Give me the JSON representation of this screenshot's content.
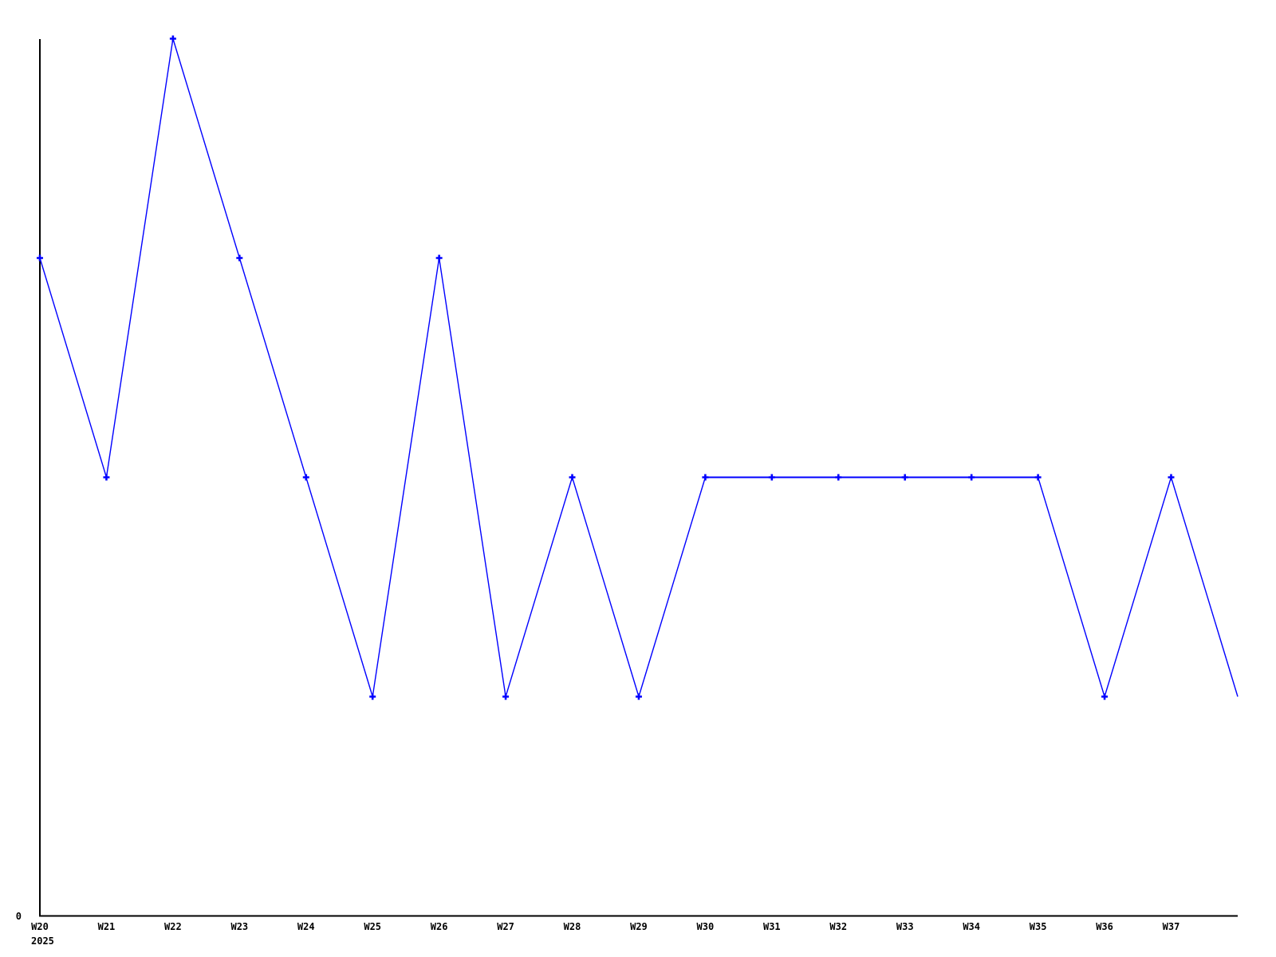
{
  "chart_data": {
    "type": "line",
    "title": "",
    "xlabel": "",
    "ylabel": "",
    "categories": [
      "W20",
      "W21",
      "W22",
      "W23",
      "W24",
      "W25",
      "W26",
      "W27",
      "W28",
      "W29",
      "W30",
      "W31",
      "W32",
      "W33",
      "W34",
      "W35",
      "W36",
      "W37"
    ],
    "values": [
      3,
      2,
      4,
      3,
      2,
      1,
      3,
      1,
      2,
      1,
      2,
      2,
      2,
      2,
      2,
      2,
      1,
      2
    ],
    "trailing_point": {
      "label": "",
      "value": 1,
      "has_marker": false
    },
    "x_axis": {
      "year_label": "2025"
    },
    "y_axis": {
      "tick_labels": [
        "0"
      ],
      "min": 0,
      "max_visible": 4
    },
    "ylim": [
      0,
      4
    ],
    "grid": false,
    "legend": "none",
    "marker_style": "plus",
    "series_color": "#0000ff",
    "axis_color": "#000000",
    "background_color": "#ffffff"
  }
}
